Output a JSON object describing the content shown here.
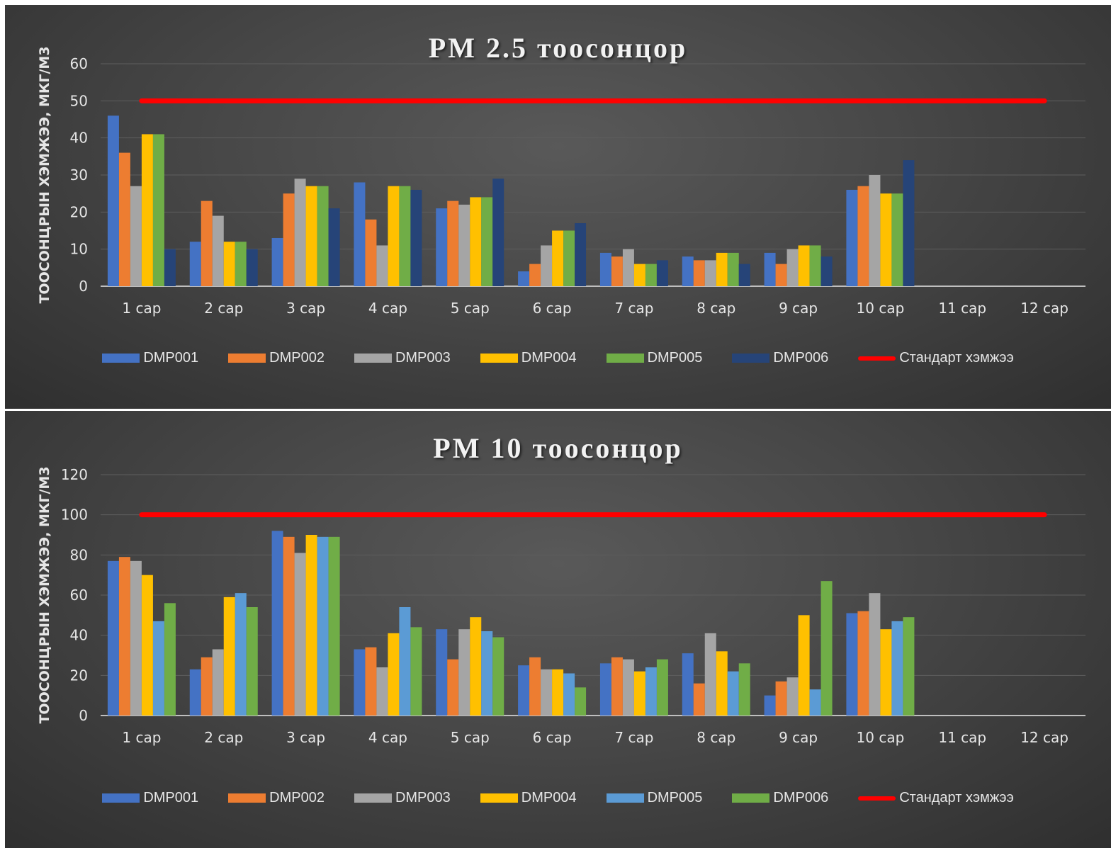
{
  "colors": {
    "dmp001": "#4472c4",
    "dmp002": "#ed7d31",
    "dmp003": "#a5a5a5",
    "dmp004": "#ffc000",
    "dmp005_pm25": "#70ad47",
    "dmp006_pm25": "#264478",
    "dmp005_pm10": "#5b9bd5",
    "dmp006_pm10": "#70ad47",
    "standard_line": "#ff0000",
    "gridline": "#5e5e5e",
    "axis_text": "#e6e6e6"
  },
  "chart_data": [
    {
      "type": "bar",
      "title": "PM 2.5 тоосонцор",
      "ylabel": "ТООСОНЦРЫН ХЭМЖЭЭ, МКГ/М3",
      "xlabel": "",
      "ylim": [
        0,
        60
      ],
      "yticks": [
        "0",
        "10",
        "20",
        "30",
        "40",
        "50",
        "60"
      ],
      "grid": true,
      "legend_position": "bottom",
      "categories": [
        "1 сар",
        "2 сар",
        "3 сар",
        "4 сар",
        "5 сар",
        "6 сар",
        "7 сар",
        "8 сар",
        "9 сар",
        "10 сар",
        "11 сар",
        "12 сар"
      ],
      "series": [
        {
          "name": "DMP001",
          "color": "#4472c4",
          "values": [
            46,
            12,
            13,
            28,
            21,
            4,
            9,
            8,
            9,
            26,
            null,
            null
          ]
        },
        {
          "name": "DMP002",
          "color": "#ed7d31",
          "values": [
            36,
            23,
            25,
            18,
            23,
            6,
            8,
            7,
            6,
            27,
            null,
            null
          ]
        },
        {
          "name": "DMP003",
          "color": "#a5a5a5",
          "values": [
            27,
            19,
            29,
            11,
            22,
            11,
            10,
            7,
            10,
            30,
            null,
            null
          ]
        },
        {
          "name": "DMP004",
          "color": "#ffc000",
          "values": [
            41,
            12,
            27,
            27,
            24,
            15,
            6,
            9,
            11,
            25,
            null,
            null
          ]
        },
        {
          "name": "DMP005",
          "color": "#70ad47",
          "values": [
            41,
            12,
            27,
            27,
            24,
            15,
            6,
            9,
            11,
            25,
            null,
            null
          ]
        },
        {
          "name": "DMP006",
          "color": "#264478",
          "values": [
            10,
            10,
            21,
            26,
            29,
            17,
            7,
            6,
            8,
            34,
            null,
            null
          ]
        }
      ],
      "line_series": {
        "name": "Стандарт хэмжээ",
        "color": "#ff0000",
        "value": 50
      }
    },
    {
      "type": "bar",
      "title": "PM 10 тоосонцор",
      "ylabel": "ТООСОНЦРЫН ХЭМЖЭЭ, МКГ/М3",
      "xlabel": "",
      "ylim": [
        0,
        120
      ],
      "yticks": [
        "0",
        "20",
        "40",
        "60",
        "80",
        "100",
        "120"
      ],
      "grid": true,
      "legend_position": "bottom",
      "categories": [
        "1 сар",
        "2 сар",
        "3 сар",
        "4 сар",
        "5 сар",
        "6 сар",
        "7 сар",
        "8 сар",
        "9 сар",
        "10 сар",
        "11 сар",
        "12 сар"
      ],
      "series": [
        {
          "name": "DMP001",
          "color": "#4472c4",
          "values": [
            77,
            23,
            92,
            33,
            43,
            25,
            26,
            31,
            10,
            51,
            null,
            null
          ]
        },
        {
          "name": "DMP002",
          "color": "#ed7d31",
          "values": [
            79,
            29,
            89,
            34,
            28,
            29,
            29,
            16,
            17,
            52,
            null,
            null
          ]
        },
        {
          "name": "DMP003",
          "color": "#a5a5a5",
          "values": [
            77,
            33,
            81,
            24,
            43,
            23,
            28,
            41,
            19,
            61,
            null,
            null
          ]
        },
        {
          "name": "DMP004",
          "color": "#ffc000",
          "values": [
            70,
            59,
            90,
            41,
            49,
            23,
            22,
            32,
            50,
            43,
            null,
            null
          ]
        },
        {
          "name": "DMP005",
          "color": "#5b9bd5",
          "values": [
            47,
            61,
            89,
            54,
            42,
            21,
            24,
            22,
            13,
            47,
            null,
            null
          ]
        },
        {
          "name": "DMP006",
          "color": "#70ad47",
          "values": [
            56,
            54,
            89,
            44,
            39,
            14,
            28,
            26,
            67,
            49,
            null,
            null
          ]
        }
      ],
      "line_series": {
        "name": "Стандарт хэмжээ",
        "color": "#ff0000",
        "value": 100
      }
    }
  ]
}
